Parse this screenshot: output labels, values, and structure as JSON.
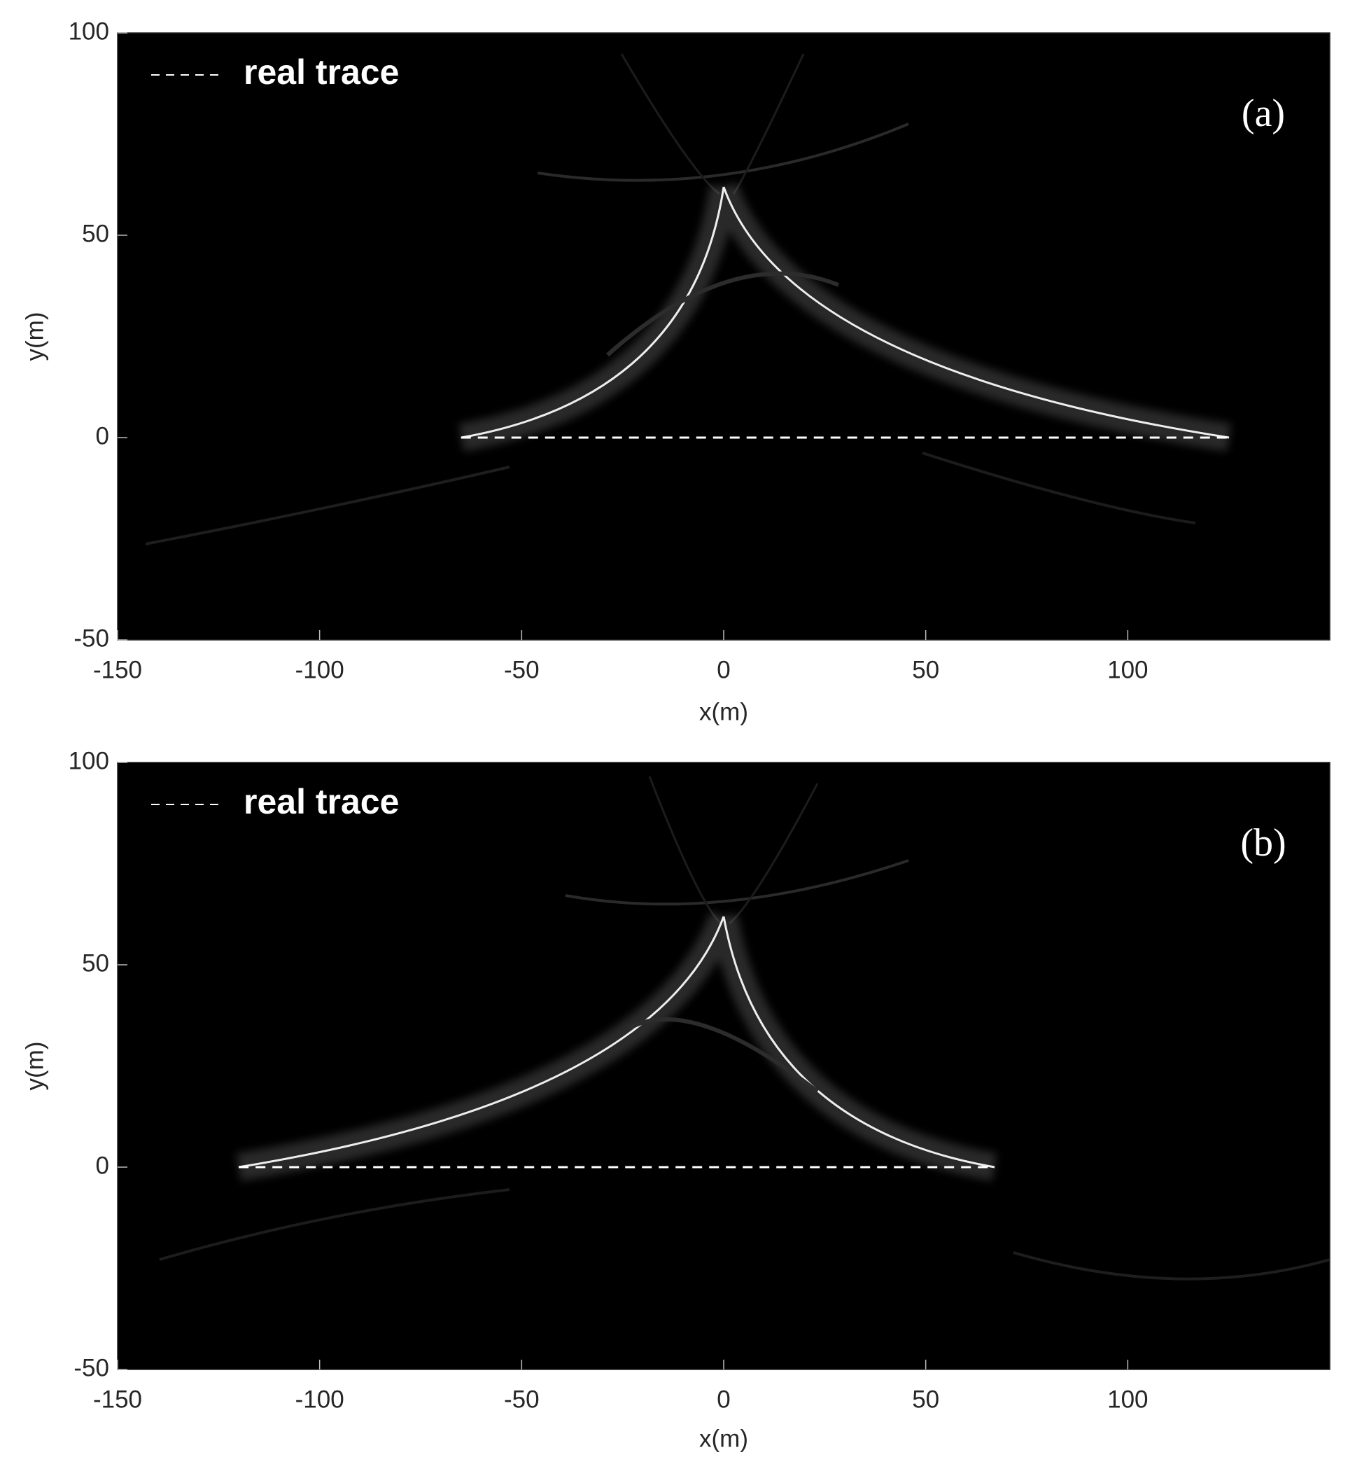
{
  "chart_data": [
    {
      "type": "line",
      "panel_label": "(a)",
      "xlabel": "x(m)",
      "ylabel": "y(m)",
      "xlim": [
        -150,
        150
      ],
      "ylim": [
        -50,
        100
      ],
      "xticks": [
        -150,
        -100,
        -50,
        0,
        50,
        100
      ],
      "yticks": [
        -50,
        0,
        50,
        100
      ],
      "legend": "upper left",
      "series": [
        {
          "name": "real trace",
          "color": "#ffffff",
          "x": [
            -65,
            125
          ],
          "values": [
            0,
            0
          ]
        }
      ]
    },
    {
      "type": "line",
      "panel_label": "(b)",
      "xlabel": "x(m)",
      "ylabel": "y(m)",
      "xlim": [
        -150,
        150
      ],
      "ylim": [
        -50,
        100
      ],
      "xticks": [
        -150,
        -100,
        -50,
        0,
        50,
        100
      ],
      "yticks": [
        -50,
        0,
        50,
        100
      ],
      "legend": "upper left",
      "series": [
        {
          "name": "real trace",
          "color": "#ffffff",
          "x": [
            -120,
            67
          ],
          "values": [
            0,
            0
          ]
        }
      ]
    }
  ]
}
